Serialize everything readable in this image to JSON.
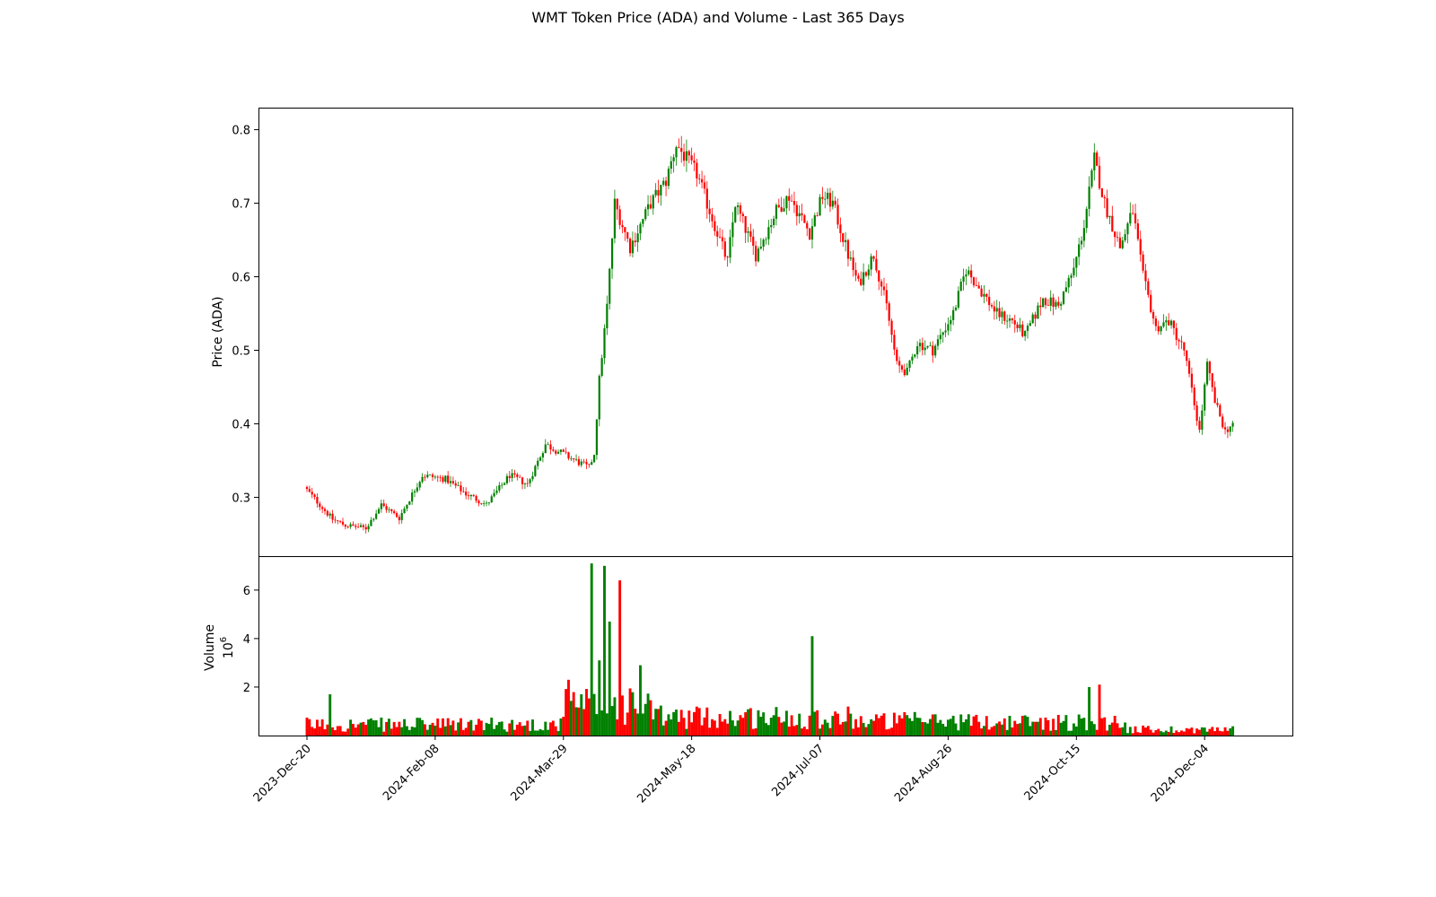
{
  "chart_data": {
    "type": "candlestick",
    "title": "WMT Token Price (ADA) and Volume - Last 365 Days",
    "colors": {
      "up": "#008000",
      "down": "#ff0000"
    },
    "x_dates": {
      "start": "2023-12-20",
      "end": "2024-12-15"
    },
    "xticks": [
      "2023-Dec-20",
      "2024-Feb-08",
      "2024-Mar-29",
      "2024-May-18",
      "2024-Jul-07",
      "2024-Aug-26",
      "2024-Oct-15",
      "2024-Dec-04"
    ],
    "price": {
      "ylabel": "Price (ADA)",
      "ylim": [
        0.22,
        0.83
      ],
      "yticks": [
        "0.3",
        "0.4",
        "0.5",
        "0.6",
        "0.7",
        "0.8"
      ],
      "close_path": [
        [
          "2023-12-20",
          0.31
        ],
        [
          "2023-12-30",
          0.27
        ],
        [
          "2024-01-04",
          0.262
        ],
        [
          "2024-01-12",
          0.258
        ],
        [
          "2024-01-18",
          0.29
        ],
        [
          "2024-01-25",
          0.272
        ],
        [
          "2024-02-03",
          0.33
        ],
        [
          "2024-02-12",
          0.325
        ],
        [
          "2024-02-20",
          0.305
        ],
        [
          "2024-02-28",
          0.29
        ],
        [
          "2024-03-08",
          0.33
        ],
        [
          "2024-03-15",
          0.318
        ],
        [
          "2024-03-22",
          0.372
        ],
        [
          "2024-03-31",
          0.355
        ],
        [
          "2024-04-08",
          0.34
        ],
        [
          "2024-04-10",
          0.36
        ],
        [
          "2024-04-12",
          0.46
        ],
        [
          "2024-04-15",
          0.56
        ],
        [
          "2024-04-18",
          0.7
        ],
        [
          "2024-04-24",
          0.64
        ],
        [
          "2024-05-02",
          0.7
        ],
        [
          "2024-05-08",
          0.73
        ],
        [
          "2024-05-12",
          0.78
        ],
        [
          "2024-05-20",
          0.74
        ],
        [
          "2024-05-28",
          0.66
        ],
        [
          "2024-06-01",
          0.62
        ],
        [
          "2024-06-04",
          0.7
        ],
        [
          "2024-06-12",
          0.63
        ],
        [
          "2024-06-20",
          0.69
        ],
        [
          "2024-06-25",
          0.71
        ],
        [
          "2024-07-03",
          0.66
        ],
        [
          "2024-07-08",
          0.71
        ],
        [
          "2024-07-12",
          0.7
        ],
        [
          "2024-07-18",
          0.63
        ],
        [
          "2024-07-22",
          0.59
        ],
        [
          "2024-07-28",
          0.63
        ],
        [
          "2024-08-02",
          0.56
        ],
        [
          "2024-08-06",
          0.48
        ],
        [
          "2024-08-10",
          0.47
        ],
        [
          "2024-08-14",
          0.51
        ],
        [
          "2024-08-20",
          0.5
        ],
        [
          "2024-08-28",
          0.55
        ],
        [
          "2024-09-02",
          0.61
        ],
        [
          "2024-09-08",
          0.58
        ],
        [
          "2024-09-14",
          0.55
        ],
        [
          "2024-09-20",
          0.54
        ],
        [
          "2024-09-25",
          0.52
        ],
        [
          "2024-10-02",
          0.57
        ],
        [
          "2024-10-08",
          0.56
        ],
        [
          "2024-10-14",
          0.61
        ],
        [
          "2024-10-18",
          0.67
        ],
        [
          "2024-10-22",
          0.76
        ],
        [
          "2024-10-26",
          0.7
        ],
        [
          "2024-11-01",
          0.64
        ],
        [
          "2024-11-06",
          0.69
        ],
        [
          "2024-11-10",
          0.6
        ],
        [
          "2024-11-15",
          0.53
        ],
        [
          "2024-11-20",
          0.54
        ],
        [
          "2024-11-26",
          0.5
        ],
        [
          "2024-12-02",
          0.39
        ],
        [
          "2024-12-05",
          0.48
        ],
        [
          "2024-12-08",
          0.43
        ],
        [
          "2024-12-12",
          0.39
        ],
        [
          "2024-12-15",
          0.4
        ]
      ]
    },
    "volume": {
      "ylabel": "Volume",
      "multiplier": "10",
      "exponent": "6",
      "ylim": [
        0,
        7.4
      ],
      "yticks": [
        "2",
        "4",
        "6"
      ],
      "spikes": [
        [
          "2024-04-09",
          7.1
        ],
        [
          "2024-04-12",
          3.1
        ],
        [
          "2024-04-14",
          7.0
        ],
        [
          "2024-04-16",
          4.7
        ],
        [
          "2024-04-20",
          6.4
        ],
        [
          "2024-04-28",
          2.9
        ],
        [
          "2024-07-04",
          4.1
        ],
        [
          "2024-03-31",
          2.3
        ],
        [
          "2024-10-24",
          2.1
        ],
        [
          "2024-10-20",
          2.0
        ],
        [
          "2023-12-29",
          1.7
        ]
      ]
    }
  }
}
